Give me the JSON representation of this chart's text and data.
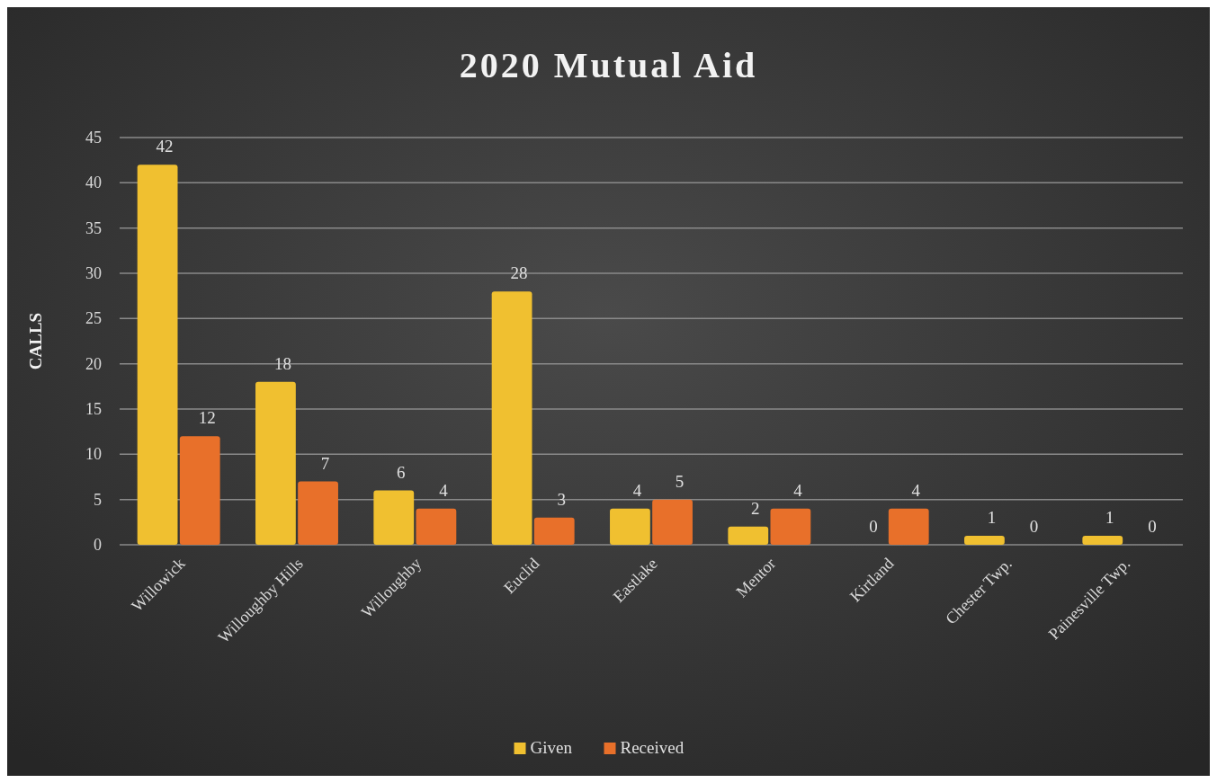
{
  "chart_data": {
    "type": "bar",
    "title": "2020 Mutual Aid",
    "ylabel": "CALLS",
    "categories": [
      "Willowick",
      "Willoughby Hills",
      "Willoughby",
      "Euclid",
      "Eastlake",
      "Mentor",
      "Kirtland",
      "Chester Twp.",
      "Painesville Twp."
    ],
    "series": [
      {
        "name": "Given",
        "color": "#f0c030",
        "values": [
          42,
          18,
          6,
          28,
          4,
          2,
          0,
          1,
          1
        ]
      },
      {
        "name": "Received",
        "color": "#e8702a",
        "values": [
          12,
          7,
          4,
          3,
          5,
          4,
          4,
          0,
          0
        ]
      }
    ],
    "ylim": [
      0,
      45
    ],
    "yticks": [
      0,
      5,
      10,
      15,
      20,
      25,
      30,
      35,
      40,
      45
    ],
    "grid": "y",
    "legend": "bottom",
    "data_labels": true
  }
}
